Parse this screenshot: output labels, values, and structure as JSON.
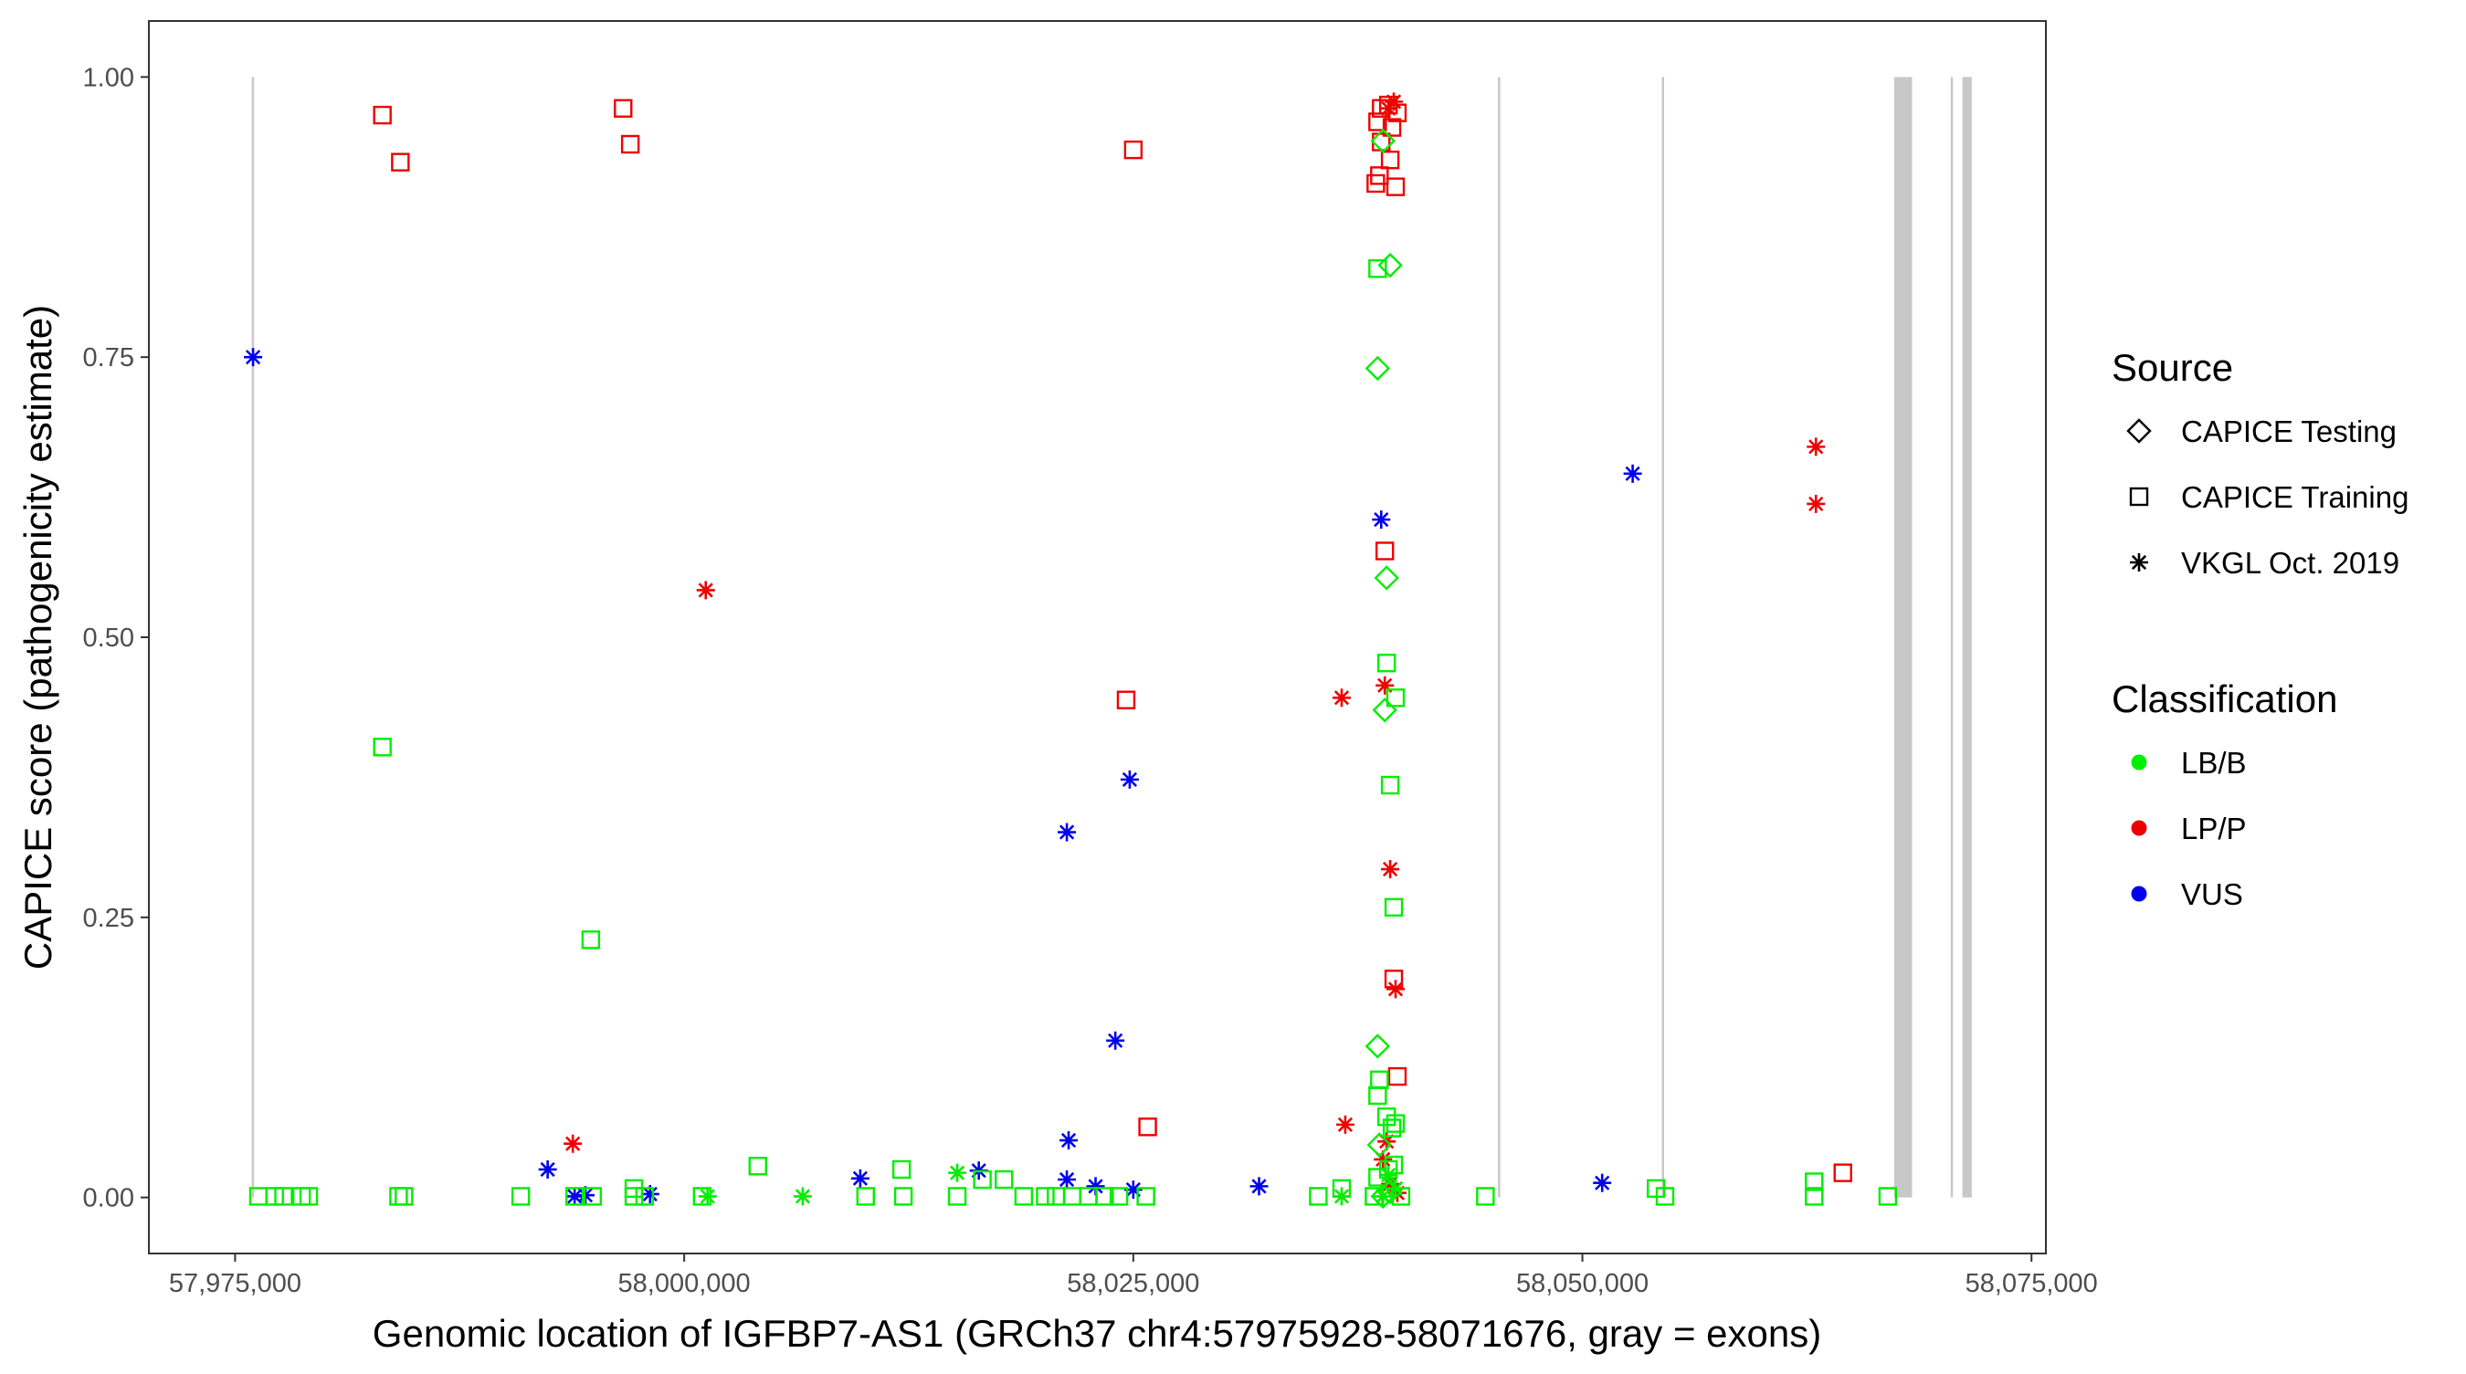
{
  "chart_data": {
    "type": "scatter",
    "title": "",
    "xlabel": "Genomic location of IGFBP7-AS1 (GRCh37 chr4:57975928-58071676, gray = exons)",
    "ylabel": "CAPICE score (pathogenicity estimate)",
    "xlim": [
      57970200,
      58075800
    ],
    "ylim": [
      -0.05,
      1.05
    ],
    "x_ticks": [
      57975000,
      58000000,
      58025000,
      58050000,
      58075000
    ],
    "x_tick_labels": [
      "57,975,000",
      "58,000,000",
      "58,025,000",
      "58,050,000",
      "58,075,000"
    ],
    "y_ticks": [
      0,
      0.25,
      0.5,
      0.75,
      1.0
    ],
    "y_tick_labels": [
      "0.00",
      "0.25",
      "0.50",
      "0.75",
      "1.00"
    ],
    "grid": false,
    "legend_position": "right",
    "colors": {
      "LB/B": "#00ee00",
      "LP/P": "#ee0000",
      "VUS": "#0000ee",
      "exon": "#c8c8c8",
      "axis": "#333333"
    },
    "exons": [
      {
        "start": 57975928,
        "end": 57976050
      },
      {
        "start": 58045300,
        "end": 58045420
      },
      {
        "start": 58054420,
        "end": 58054540
      },
      {
        "start": 58067350,
        "end": 58068350
      },
      {
        "start": 58070500,
        "end": 58070600
      },
      {
        "start": 58071150,
        "end": 58071676
      }
    ],
    "legends": [
      {
        "title": "Source",
        "kind": "shape",
        "items": [
          {
            "label": "CAPICE Testing",
            "shape": "diamond"
          },
          {
            "label": "CAPICE Training",
            "shape": "square"
          },
          {
            "label": "VKGL Oct. 2019",
            "shape": "asterisk"
          }
        ]
      },
      {
        "title": "Classification",
        "kind": "color",
        "items": [
          {
            "label": "LB/B",
            "color": "#00ee00"
          },
          {
            "label": "LP/P",
            "color": "#ee0000"
          },
          {
            "label": "VUS",
            "color": "#0000ee"
          }
        ]
      }
    ],
    "series": [
      {
        "source": "CAPICE Training",
        "classification": "LP/P",
        "shape": "square",
        "points": [
          [
            57983200,
            0.966
          ],
          [
            57984200,
            0.924
          ],
          [
            57996600,
            0.972
          ],
          [
            57997000,
            0.94
          ],
          [
            58025000,
            0.935
          ],
          [
            58024600,
            0.444
          ],
          [
            58025800,
            0.063
          ],
          [
            58038800,
            0.972
          ],
          [
            58039200,
            0.975
          ],
          [
            58038600,
            0.96
          ],
          [
            58039400,
            0.955
          ],
          [
            58039700,
            0.968
          ],
          [
            58038800,
            0.942
          ],
          [
            58039300,
            0.926
          ],
          [
            58038700,
            0.912
          ],
          [
            58038500,
            0.905
          ],
          [
            58039600,
            0.902
          ],
          [
            58039000,
            0.577
          ],
          [
            58039500,
            0.195
          ],
          [
            58039700,
            0.108
          ],
          [
            58064500,
            0.022
          ]
        ]
      },
      {
        "source": "VKGL Oct. 2019",
        "classification": "LP/P",
        "shape": "asterisk",
        "points": [
          [
            58001200,
            0.542
          ],
          [
            57993800,
            0.048
          ],
          [
            58036600,
            0.446
          ],
          [
            58039000,
            0.457
          ],
          [
            58039300,
            0.293
          ],
          [
            58039600,
            0.186
          ],
          [
            58036800,
            0.065
          ],
          [
            58039100,
            0.05
          ],
          [
            58038900,
            0.034
          ],
          [
            58039300,
            0.012
          ],
          [
            58039700,
            0.004
          ],
          [
            58039500,
            0.978
          ],
          [
            58039200,
            0.972
          ],
          [
            58063000,
            0.67
          ],
          [
            58063000,
            0.619
          ]
        ]
      },
      {
        "source": "VKGL Oct. 2019",
        "classification": "VUS",
        "shape": "asterisk",
        "points": [
          [
            57976000,
            0.75
          ],
          [
            58052800,
            0.646
          ],
          [
            58038800,
            0.605
          ],
          [
            58024800,
            0.373
          ],
          [
            58021300,
            0.326
          ],
          [
            58024000,
            0.14
          ],
          [
            58021400,
            0.051
          ],
          [
            57992400,
            0.025
          ],
          [
            58016400,
            0.024
          ],
          [
            58009800,
            0.017
          ],
          [
            58021300,
            0.016
          ],
          [
            58022900,
            0.01
          ],
          [
            58032000,
            0.01
          ],
          [
            58051100,
            0.013
          ],
          [
            58025000,
            0.007
          ],
          [
            57998100,
            0.003
          ],
          [
            57994500,
            0.002
          ],
          [
            57993900,
            0.001
          ]
        ]
      },
      {
        "source": "VKGL Oct. 2019",
        "classification": "LB/B",
        "shape": "asterisk",
        "points": [
          [
            58015200,
            0.022
          ],
          [
            58006600,
            0.001
          ],
          [
            58001300,
            0.001
          ],
          [
            58036600,
            0.001
          ],
          [
            58039600,
            0.008
          ],
          [
            58039200,
            0.02
          ],
          [
            58038900,
            0.001
          ]
        ]
      },
      {
        "source": "CAPICE Testing",
        "classification": "LB/B",
        "shape": "diamond",
        "points": [
          [
            58038900,
            0.943
          ],
          [
            58039300,
            0.832
          ],
          [
            58038600,
            0.74
          ],
          [
            58039100,
            0.553
          ],
          [
            58039000,
            0.435
          ],
          [
            58038600,
            0.135
          ],
          [
            58038900,
            0.001
          ],
          [
            58039300,
            0.005
          ],
          [
            58038700,
            0.047
          ]
        ]
      },
      {
        "source": "CAPICE Training",
        "classification": "LB/B",
        "shape": "square",
        "points": [
          [
            58038600,
            0.829
          ],
          [
            57983200,
            0.402
          ],
          [
            58039100,
            0.477
          ],
          [
            58039600,
            0.446
          ],
          [
            58039300,
            0.368
          ],
          [
            58039500,
            0.259
          ],
          [
            57994800,
            0.23
          ],
          [
            58038700,
            0.105
          ],
          [
            58038600,
            0.091
          ],
          [
            58039100,
            0.072
          ],
          [
            58039600,
            0.066
          ],
          [
            58039400,
            0.062
          ],
          [
            58039200,
            0.025
          ],
          [
            58039500,
            0.029
          ],
          [
            58038600,
            0.018
          ],
          [
            58004100,
            0.028
          ],
          [
            58012100,
            0.025
          ],
          [
            58016600,
            0.016
          ],
          [
            58017800,
            0.016
          ],
          [
            58062900,
            0.014
          ],
          [
            57997200,
            0.008
          ],
          [
            58036600,
            0.008
          ],
          [
            58054100,
            0.008
          ],
          [
            57976300,
            0.001
          ],
          [
            57977200,
            0.001
          ],
          [
            57977700,
            0.001
          ],
          [
            57978700,
            0.001
          ],
          [
            57979100,
            0.001
          ],
          [
            57984100,
            0.001
          ],
          [
            57984400,
            0.001
          ],
          [
            57990900,
            0.001
          ],
          [
            57993900,
            0.001
          ],
          [
            57994900,
            0.001
          ],
          [
            57997200,
            0.001
          ],
          [
            57997800,
            0.001
          ],
          [
            58001000,
            0.001
          ],
          [
            58010100,
            0.001
          ],
          [
            58012200,
            0.001
          ],
          [
            58015200,
            0.001
          ],
          [
            58018900,
            0.001
          ],
          [
            58020100,
            0.001
          ],
          [
            58020700,
            0.001
          ],
          [
            58021600,
            0.001
          ],
          [
            58022500,
            0.001
          ],
          [
            58023400,
            0.001
          ],
          [
            58024200,
            0.001
          ],
          [
            58025700,
            0.001
          ],
          [
            58035300,
            0.001
          ],
          [
            58038400,
            0.001
          ],
          [
            58039900,
            0.001
          ],
          [
            58044600,
            0.001
          ],
          [
            58054600,
            0.001
          ],
          [
            58062900,
            0.001
          ],
          [
            58067000,
            0.001
          ]
        ]
      }
    ]
  }
}
